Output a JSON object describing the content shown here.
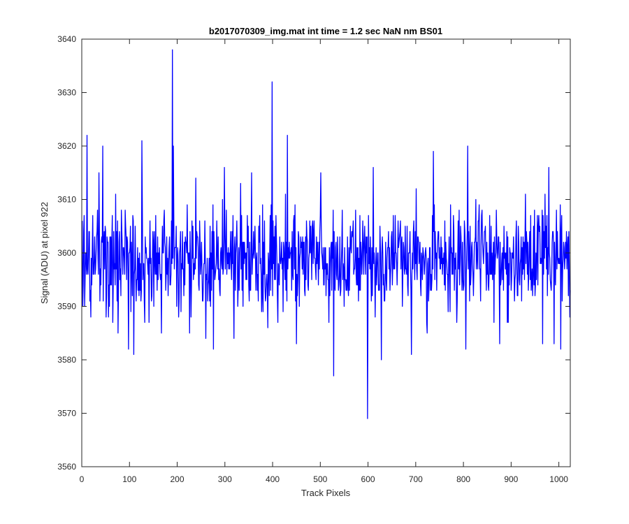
{
  "chart_data": {
    "type": "line",
    "title": "b2017070309_img.mat int time = 1.2 sec  NaN nm BS01",
    "xlabel": "Track Pixels",
    "ylabel": "Signal (ADU) at pixel 922",
    "xlim": [
      0,
      1024
    ],
    "ylim": [
      3560,
      3640
    ],
    "xticks": [
      0,
      100,
      200,
      300,
      400,
      500,
      600,
      700,
      800,
      900,
      1000
    ],
    "yticks": [
      3560,
      3570,
      3580,
      3590,
      3600,
      3610,
      3620,
      3630,
      3640
    ],
    "grid": false,
    "legend": "none",
    "series": [
      {
        "color": "#0000ff",
        "noise": {
          "n": 1024,
          "mean": 3599,
          "std": 5.5,
          "seed": 20170703
        },
        "peaks": [
          {
            "x": 1,
            "y": 3590
          },
          {
            "x": 4,
            "y": 3607
          },
          {
            "x": 10,
            "y": 3622
          },
          {
            "x": 18,
            "y": 3588
          },
          {
            "x": 35,
            "y": 3615
          },
          {
            "x": 43,
            "y": 3620
          },
          {
            "x": 50,
            "y": 3588
          },
          {
            "x": 75,
            "y": 3585
          },
          {
            "x": 97,
            "y": 3582
          },
          {
            "x": 108,
            "y": 3581
          },
          {
            "x": 125,
            "y": 3621
          },
          {
            "x": 140,
            "y": 3587
          },
          {
            "x": 166,
            "y": 3585
          },
          {
            "x": 189,
            "y": 3638
          },
          {
            "x": 191,
            "y": 3620
          },
          {
            "x": 228,
            "y": 3588
          },
          {
            "x": 238,
            "y": 3614
          },
          {
            "x": 259,
            "y": 3584
          },
          {
            "x": 275,
            "y": 3582
          },
          {
            "x": 298,
            "y": 3616
          },
          {
            "x": 355,
            "y": 3615
          },
          {
            "x": 398,
            "y": 3632
          },
          {
            "x": 410,
            "y": 3587
          },
          {
            "x": 430,
            "y": 3622
          },
          {
            "x": 449,
            "y": 3583
          },
          {
            "x": 500,
            "y": 3615
          },
          {
            "x": 527,
            "y": 3577
          },
          {
            "x": 598,
            "y": 3569
          },
          {
            "x": 610,
            "y": 3616
          },
          {
            "x": 627,
            "y": 3580
          },
          {
            "x": 690,
            "y": 3581
          },
          {
            "x": 736,
            "y": 3619
          },
          {
            "x": 804,
            "y": 3582
          },
          {
            "x": 808,
            "y": 3620
          },
          {
            "x": 825,
            "y": 3610
          },
          {
            "x": 875,
            "y": 3583
          },
          {
            "x": 965,
            "y": 3583
          },
          {
            "x": 978,
            "y": 3616
          },
          {
            "x": 1003,
            "y": 3582
          },
          {
            "x": 1022,
            "y": 3588
          }
        ]
      }
    ]
  }
}
